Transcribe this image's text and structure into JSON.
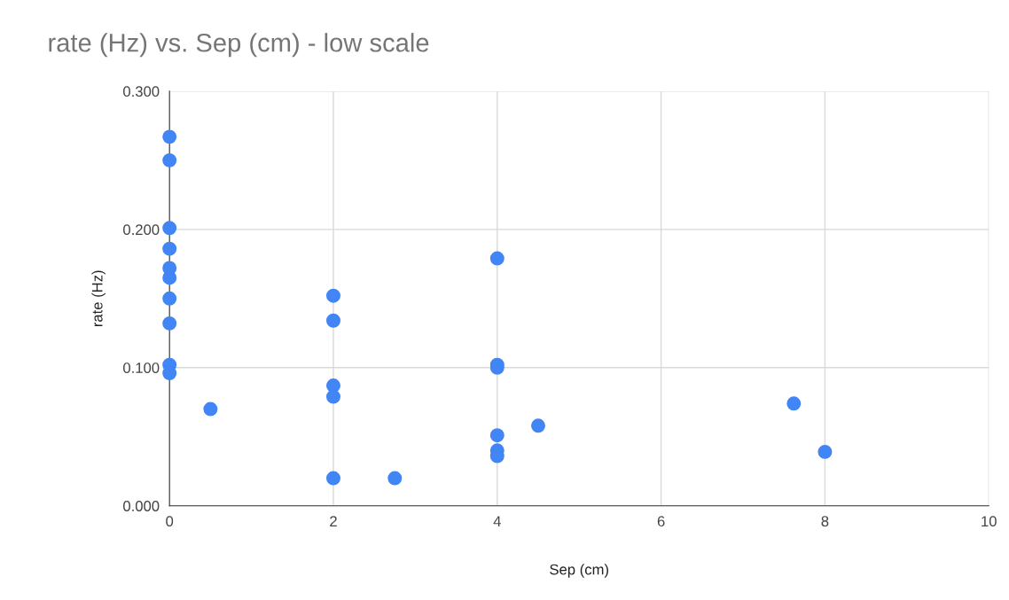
{
  "chart_data": {
    "type": "scatter",
    "title": "rate (Hz) vs. Sep (cm) - low scale",
    "xlabel": "Sep (cm)",
    "ylabel": "rate (Hz)",
    "x": [
      0,
      0,
      0,
      0,
      0,
      0,
      0,
      0,
      0,
      0,
      0.5,
      2,
      2,
      2,
      2,
      2,
      2.75,
      4,
      4,
      4,
      4,
      4,
      4,
      4.5,
      7.62,
      8
    ],
    "series": [
      {
        "color": "#4285f4",
        "values": [
          0.267,
          0.25,
          0.201,
          0.186,
          0.172,
          0.165,
          0.15,
          0.132,
          0.102,
          0.096,
          0.07,
          0.152,
          0.134,
          0.087,
          0.079,
          0.02,
          0.02,
          0.179,
          0.102,
          0.1,
          0.051,
          0.04,
          0.036,
          0.058,
          0.074,
          0.039
        ]
      }
    ],
    "xlim": [
      0,
      10
    ],
    "xticks": [
      0,
      2,
      4,
      6,
      8,
      10
    ],
    "ylim": [
      0,
      0.3
    ],
    "yticks": [
      {
        "value": 0,
        "label": "0.000"
      },
      {
        "value": 0.1,
        "label": "0.100"
      },
      {
        "value": 0.2,
        "label": "0.200"
      },
      {
        "value": 0.3,
        "label": "0.300"
      }
    ],
    "grid": true,
    "marker": "circle",
    "legend": false
  }
}
